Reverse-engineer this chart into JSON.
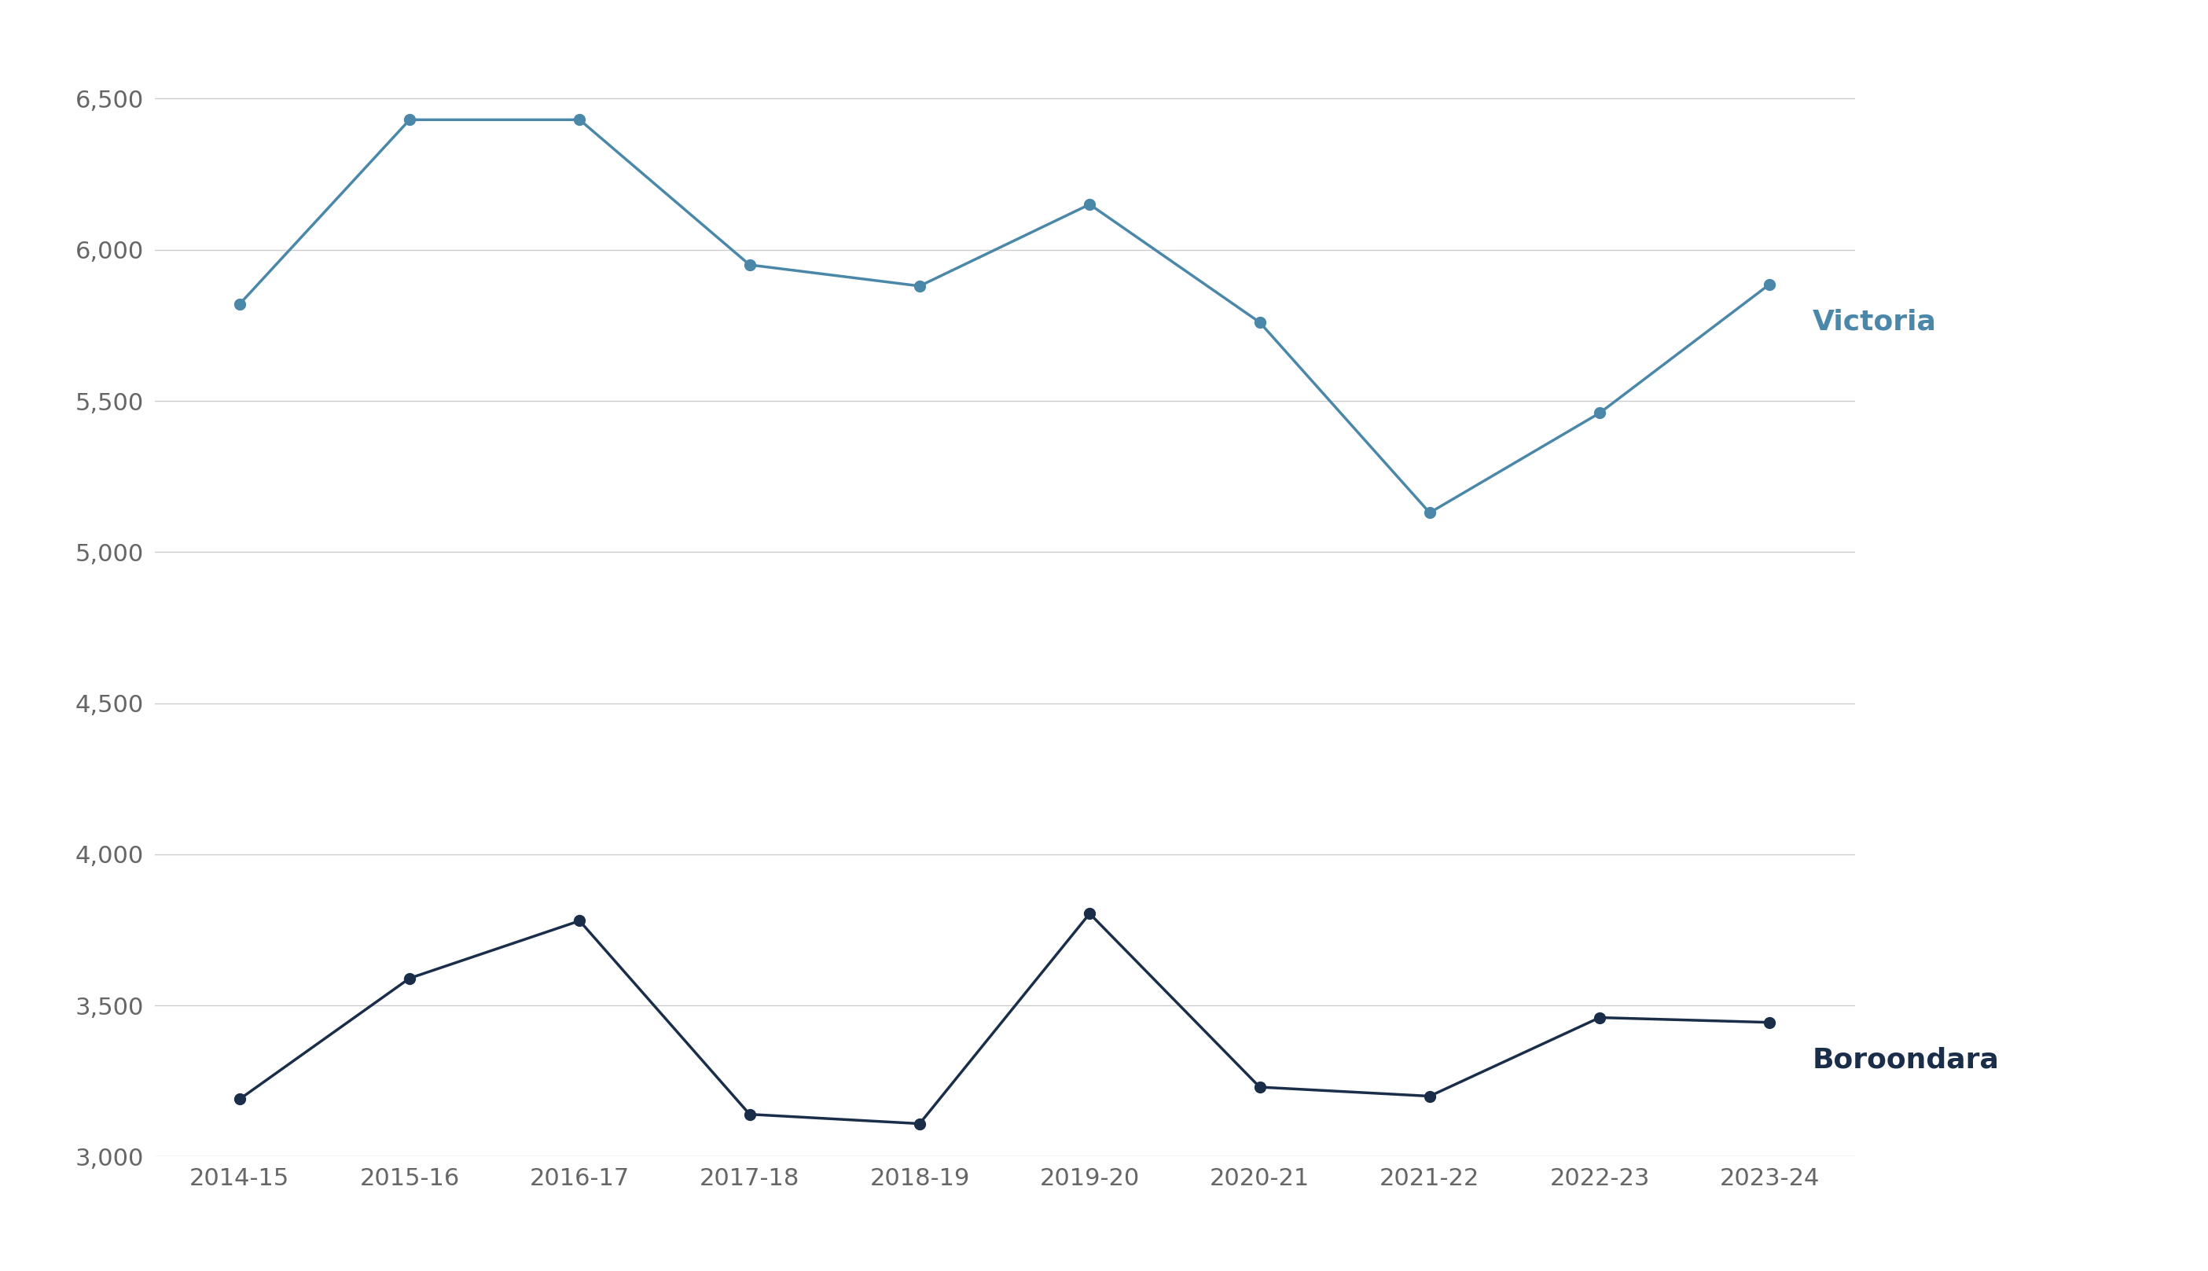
{
  "years": [
    "2014-15",
    "2015-16",
    "2016-17",
    "2017-18",
    "2018-19",
    "2019-20",
    "2020-21",
    "2021-22",
    "2022-23",
    "2023-24"
  ],
  "victoria": [
    5820,
    6430,
    6430,
    5950,
    5880,
    6150,
    5760,
    5130,
    5460,
    5886
  ],
  "boroondara": [
    3190,
    3590,
    3780,
    3140,
    3109,
    3804,
    3230,
    3200,
    3460,
    3444
  ],
  "victoria_color": "#4a87a8",
  "boroondara_color": "#1a2e4a",
  "victoria_label": "Victoria",
  "boroondara_label": "Boroondara",
  "ylim": [
    3000,
    6700
  ],
  "yticks": [
    3000,
    3500,
    4000,
    4500,
    5000,
    5500,
    6000,
    6500
  ],
  "ytick_labels": [
    "3,000",
    "3,500",
    "4,000",
    "4,500",
    "5,000",
    "5,500",
    "6,000",
    "6,500"
  ],
  "marker": "o",
  "marker_size": 10,
  "line_width": 2.5,
  "background_color": "#ffffff",
  "grid_color": "#cccccc",
  "tick_fontsize": 22,
  "annotation_fontsize": 26
}
